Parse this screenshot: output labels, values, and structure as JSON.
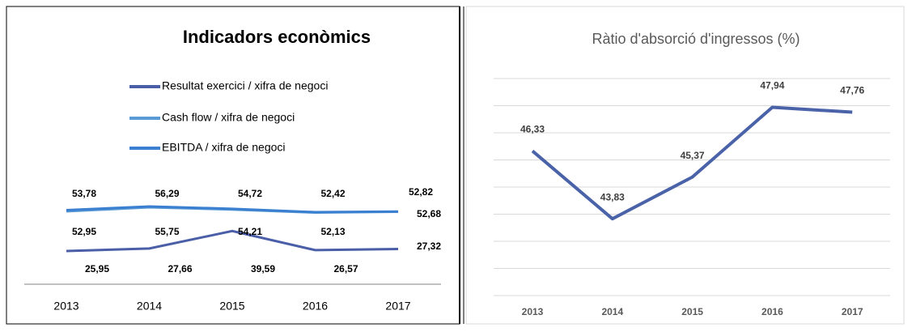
{
  "chart_data": [
    {
      "type": "line",
      "title": "Indicadors econòmics",
      "categories": [
        "2013",
        "2014",
        "2015",
        "2016",
        "2017"
      ],
      "series": [
        {
          "name": "Resultat exercici / xifra de negoci",
          "color": "#4a5fa8",
          "values": [
            25.95,
            27.66,
            39.59,
            26.57,
            27.32
          ],
          "value_labels": [
            "25,95",
            "27,66",
            "39,59",
            "26,57",
            "27,32"
          ]
        },
        {
          "name": "Cash flow / xifra de negoci",
          "color": "#5b9bd5",
          "values": [
            52.95,
            55.75,
            54.21,
            52.13,
            52.68
          ],
          "value_labels": [
            "52,95",
            "55,75",
            "54,21",
            "52,13",
            "52,68"
          ]
        },
        {
          "name": "EBITDA / xifra de negoci",
          "color": "#3a7fd0",
          "values": [
            53.78,
            56.29,
            54.72,
            52.42,
            52.82
          ],
          "value_labels": [
            "53,78",
            "56,29",
            "54,72",
            "52,42",
            "52,82"
          ]
        }
      ]
    },
    {
      "type": "line",
      "title": "Ràtio d'absorció d'ingressos (%)",
      "categories": [
        "2013",
        "2014",
        "2015",
        "2016",
        "2017"
      ],
      "series": [
        {
          "name": "Ràtio d'absorció d'ingressos",
          "color": "#4a62a8",
          "values": [
            46.33,
            43.83,
            45.37,
            47.94,
            47.76
          ],
          "value_labels": [
            "46,33",
            "43,83",
            "45,37",
            "47,94",
            "47,76"
          ]
        }
      ],
      "ylim": [
        41,
        49
      ],
      "yticks": [
        41,
        42,
        43,
        44,
        45,
        46,
        47,
        48,
        49
      ],
      "grid": true
    }
  ]
}
